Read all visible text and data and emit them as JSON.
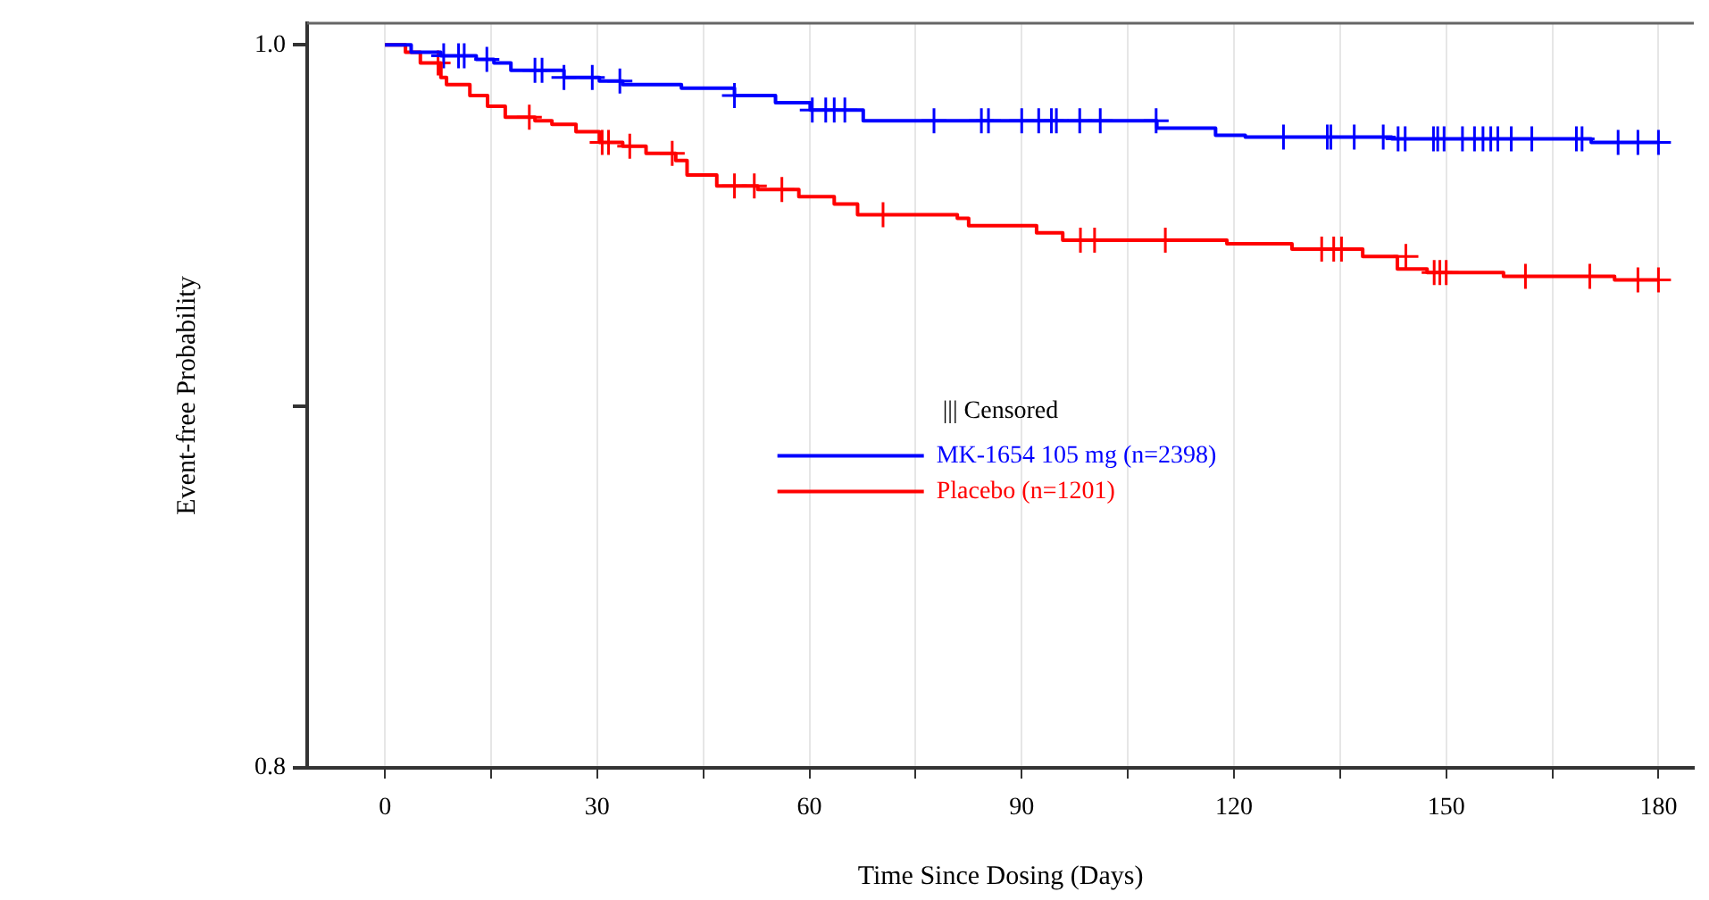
{
  "chart_data": {
    "type": "step",
    "xlabel": "Time Since Dosing (Days)",
    "ylabel": "Event-free Probability",
    "legend_title": "||| Censored",
    "legend": "center",
    "grid": "x",
    "xlim": [
      -11,
      185
    ],
    "xticks": [
      0,
      {
        "value": 15,
        "label": null
      },
      30,
      {
        "value": 45,
        "label": null
      },
      60,
      {
        "value": 75,
        "label": null
      },
      90,
      {
        "value": 105,
        "label": null
      },
      120,
      {
        "value": 135,
        "label": null
      },
      150,
      {
        "value": 165,
        "label": null
      },
      180
    ],
    "ylim": [
      0.8,
      1.006
    ],
    "yticks": [
      {
        "value": 0.8,
        "label": "0.8"
      },
      {
        "value": 0.9,
        "label": null
      },
      {
        "value": 1.0,
        "label": "1.0"
      }
    ],
    "series": [
      {
        "name": "MK-1654 105 mg (n=2398)",
        "color": "#0000ff",
        "x": [
          0,
          3.7,
          7.9,
          12.9,
          15.4,
          17.8,
          25.3,
          30.3,
          33.6,
          41.9,
          49.4,
          55.2,
          60.1,
          67.6,
          109.1,
          117.4,
          121.6,
          142.3,
          170.5,
          180
        ],
        "values": [
          1.0,
          0.998,
          0.997,
          0.996,
          0.995,
          0.993,
          0.991,
          0.99,
          0.989,
          0.988,
          0.986,
          0.984,
          0.982,
          0.979,
          0.977,
          0.975,
          0.9745,
          0.974,
          0.973,
          0.973
        ]
      },
      {
        "name": "Placebo (n=1201)",
        "color": "#ff0000",
        "x": [
          0,
          2.9,
          5,
          7.9,
          8.7,
          12,
          14.5,
          17,
          21.2,
          23.6,
          27,
          30.3,
          33.6,
          36.9,
          41.1,
          42.7,
          46.9,
          52.7,
          58.5,
          63.5,
          66.8,
          80.9,
          82.5,
          92.1,
          95.8,
          119,
          128.2,
          138.2,
          143.1,
          147.3,
          158.1,
          173.8,
          180
        ],
        "values": [
          1.0,
          0.998,
          0.995,
          0.991,
          0.989,
          0.986,
          0.983,
          0.98,
          0.979,
          0.978,
          0.976,
          0.973,
          0.972,
          0.97,
          0.968,
          0.964,
          0.961,
          0.96,
          0.958,
          0.956,
          0.953,
          0.952,
          0.95,
          0.948,
          0.946,
          0.945,
          0.9435,
          0.9415,
          0.938,
          0.937,
          0.936,
          0.935,
          0.935
        ]
      },
      {
        "type": "scatter",
        "marker": "cross",
        "color": "#0000ff",
        "x": [
          8.3,
          10.4,
          11.2,
          14.4,
          21.2,
          22.2,
          25.3,
          29.3,
          33.2,
          49.4,
          60.4,
          62.3,
          63.5,
          65,
          77.6,
          84.3,
          85.3,
          90,
          92.4,
          94.2,
          94.9,
          98.2,
          101.1,
          109,
          127,
          133.2,
          133.7,
          137,
          141.1,
          143.2,
          144.2,
          148.2,
          148.8,
          149.7,
          152.3,
          154,
          155.2,
          156.3,
          157.3,
          159.2,
          162.1,
          168.4,
          169.2,
          174.3,
          177.1,
          180
        ],
        "values": [
          0.997,
          0.997,
          0.997,
          0.996,
          0.993,
          0.993,
          0.991,
          0.991,
          0.99,
          0.986,
          0.982,
          0.982,
          0.982,
          0.982,
          0.979,
          0.979,
          0.979,
          0.979,
          0.979,
          0.979,
          0.979,
          0.979,
          0.979,
          0.979,
          0.9745,
          0.9745,
          0.9745,
          0.9745,
          0.9745,
          0.974,
          0.974,
          0.974,
          0.974,
          0.974,
          0.974,
          0.974,
          0.974,
          0.974,
          0.974,
          0.974,
          0.974,
          0.974,
          0.974,
          0.973,
          0.973,
          0.973
        ]
      },
      {
        "type": "scatter",
        "marker": "cross",
        "color": "#ff0000",
        "x": [
          7.5,
          20.4,
          30.7,
          31.6,
          34.6,
          40.6,
          49.4,
          52.2,
          56.1,
          70.4,
          98.3,
          100.3,
          110.3,
          132.4,
          134.1,
          135.2,
          144.3,
          148.3,
          149.1,
          150,
          161.2,
          170.3,
          177.1,
          180
        ],
        "values": [
          0.995,
          0.98,
          0.973,
          0.973,
          0.972,
          0.97,
          0.961,
          0.961,
          0.96,
          0.953,
          0.946,
          0.946,
          0.946,
          0.9435,
          0.9435,
          0.9435,
          0.9415,
          0.937,
          0.937,
          0.937,
          0.936,
          0.936,
          0.935,
          0.935
        ]
      }
    ]
  }
}
